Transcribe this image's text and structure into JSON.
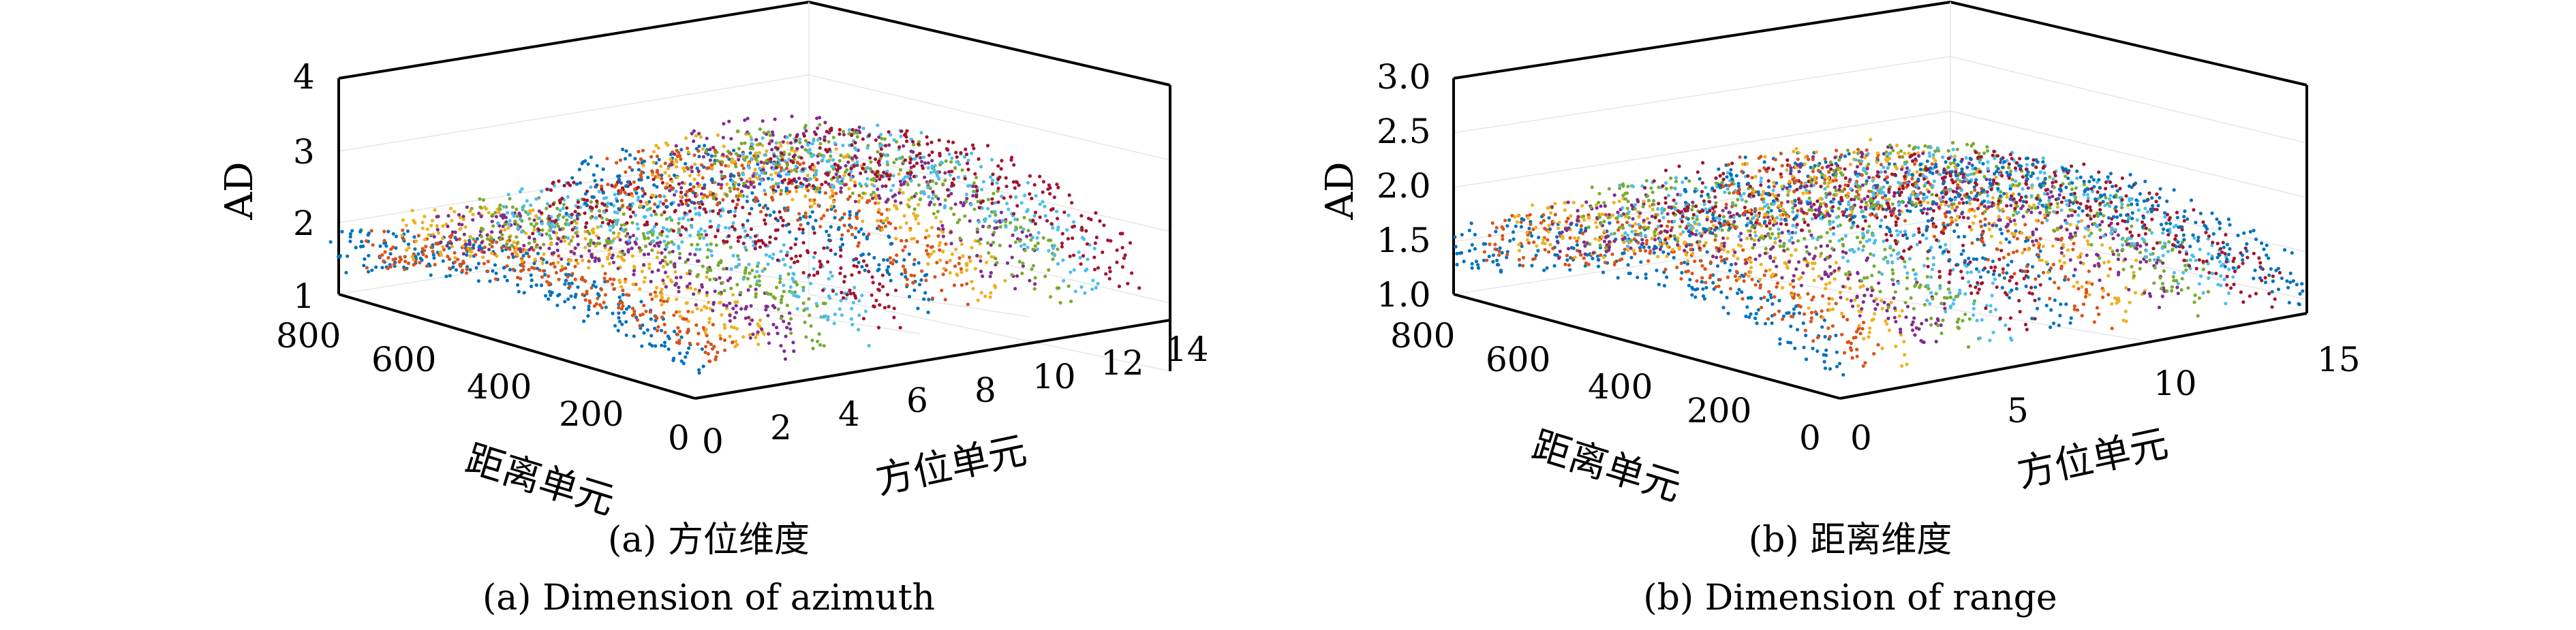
{
  "chart_data": [
    {
      "type": "scatter",
      "subtype": "3d-scatter",
      "caption_cn": "(a) 方位维度",
      "caption_en": "(a) Dimension of azimuth",
      "xlabel": "方位单元",
      "ylabel": "距离单元",
      "zlabel": "AD",
      "xlim": [
        0,
        14
      ],
      "ylim": [
        0,
        800
      ],
      "zlim": [
        1,
        4
      ],
      "xticks": [
        "0",
        "2",
        "4",
        "6",
        "8",
        "10",
        "12",
        "14"
      ],
      "yticks": [
        "800",
        "600",
        "400",
        "200",
        "0"
      ],
      "zticks": [
        "1",
        "2",
        "3",
        "4"
      ],
      "grid": true,
      "series_count": 14,
      "colors": [
        "#0072BD",
        "#D95319",
        "#EDB120",
        "#7E2F8E",
        "#77AC30",
        "#4DBEEE",
        "#A2142F"
      ],
      "series": [
        {
          "x": 0,
          "ad_range": [
            1.2,
            2.3
          ]
        },
        {
          "x": 1,
          "ad_range": [
            1.2,
            2.2
          ]
        },
        {
          "x": 2,
          "ad_range": [
            1.2,
            2.5
          ]
        },
        {
          "x": 3,
          "ad_range": [
            1.2,
            2.4
          ]
        },
        {
          "x": 4,
          "ad_range": [
            1.2,
            2.5
          ]
        },
        {
          "x": 5,
          "ad_range": [
            1.2,
            2.6
          ]
        },
        {
          "x": 6,
          "ad_range": [
            1.3,
            2.6
          ]
        },
        {
          "x": 7,
          "ad_range": [
            1.4,
            3.0
          ]
        },
        {
          "x": 8,
          "ad_range": [
            1.4,
            2.9
          ]
        },
        {
          "x": 9,
          "ad_range": [
            1.4,
            3.0
          ]
        },
        {
          "x": 10,
          "ad_range": [
            1.3,
            3.2
          ]
        },
        {
          "x": 11,
          "ad_range": [
            1.3,
            3.0
          ]
        },
        {
          "x": 12,
          "ad_range": [
            1.3,
            2.9
          ]
        },
        {
          "x": 13,
          "ad_range": [
            1.3,
            2.8
          ]
        }
      ]
    },
    {
      "type": "scatter",
      "subtype": "3d-scatter",
      "caption_cn": "(b) 距离维度",
      "caption_en": "(b) Dimension of range",
      "xlabel": "方位单元",
      "ylabel": "距离单元",
      "zlabel": "AD",
      "xlim": [
        0,
        15
      ],
      "ylim": [
        0,
        800
      ],
      "zlim": [
        1,
        3
      ],
      "xticks": [
        "0",
        "5",
        "10",
        "15"
      ],
      "yticks": [
        "800",
        "600",
        "400",
        "200",
        "0"
      ],
      "zticks": [
        "1.0",
        "1.5",
        "2.0",
        "2.5",
        "3.0"
      ],
      "grid": true,
      "series_count": 15,
      "colors": [
        "#0072BD",
        "#D95319",
        "#EDB120",
        "#7E2F8E",
        "#77AC30",
        "#4DBEEE",
        "#A2142F"
      ],
      "series": [
        {
          "x": 0,
          "ad_range": [
            1.1,
            2.0
          ]
        },
        {
          "x": 1,
          "ad_range": [
            1.1,
            2.0
          ]
        },
        {
          "x": 2,
          "ad_range": [
            1.1,
            2.1
          ]
        },
        {
          "x": 3,
          "ad_range": [
            1.1,
            2.1
          ]
        },
        {
          "x": 4,
          "ad_range": [
            1.1,
            2.2
          ]
        },
        {
          "x": 5,
          "ad_range": [
            1.1,
            2.2
          ]
        },
        {
          "x": 6,
          "ad_range": [
            1.1,
            2.3
          ]
        },
        {
          "x": 7,
          "ad_range": [
            1.1,
            2.3
          ]
        },
        {
          "x": 8,
          "ad_range": [
            1.1,
            2.3
          ]
        },
        {
          "x": 9,
          "ad_range": [
            1.1,
            2.3
          ]
        },
        {
          "x": 10,
          "ad_range": [
            1.1,
            2.2
          ]
        },
        {
          "x": 11,
          "ad_range": [
            1.1,
            2.2
          ]
        },
        {
          "x": 12,
          "ad_range": [
            1.1,
            2.1
          ]
        },
        {
          "x": 13,
          "ad_range": [
            1.1,
            2.0
          ]
        },
        {
          "x": 14,
          "ad_range": [
            1.1,
            1.9
          ]
        }
      ]
    }
  ]
}
